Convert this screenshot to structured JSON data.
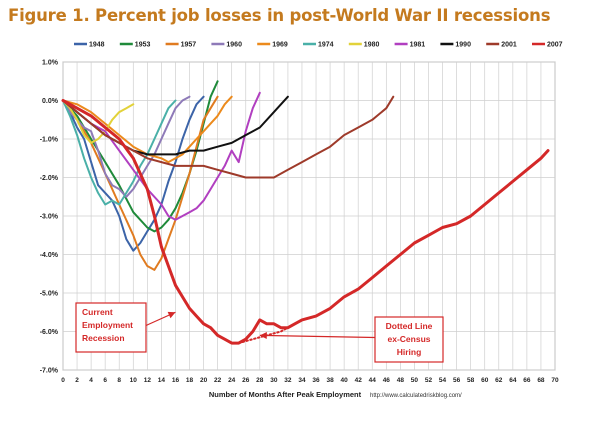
{
  "chart_data": {
    "type": "line",
    "title": "Figure 1. Percent job losses in post-World War II recessions",
    "xlabel": "Number of Months After Peak Employment",
    "source": "http://www.calculatedriskblog.com/",
    "xlim": [
      0,
      70
    ],
    "ylim": [
      -7.0,
      1.0
    ],
    "xticks": [
      0,
      2,
      4,
      6,
      8,
      10,
      12,
      14,
      16,
      18,
      20,
      22,
      24,
      26,
      28,
      30,
      32,
      34,
      36,
      38,
      40,
      42,
      44,
      46,
      48,
      50,
      52,
      54,
      56,
      58,
      60,
      62,
      64,
      66,
      68,
      70
    ],
    "yticks": [
      {
        "v": 1,
        "label": "1.0%"
      },
      {
        "v": 0,
        "label": "0.0%"
      },
      {
        "v": -1,
        "label": "-1.0%"
      },
      {
        "v": -2,
        "label": "-2.0%"
      },
      {
        "v": -3,
        "label": "-3.0%"
      },
      {
        "v": -4,
        "label": "-4.0%"
      },
      {
        "v": -5,
        "label": "-5.0%"
      },
      {
        "v": -6,
        "label": "-6.0%"
      },
      {
        "v": -7,
        "label": "-7.0%"
      }
    ],
    "grid": true,
    "legend": "top",
    "series": [
      {
        "name": "1948",
        "color": "#3c64a8",
        "width": 2,
        "points": [
          [
            0,
            0
          ],
          [
            1,
            -0.3
          ],
          [
            2,
            -0.7
          ],
          [
            3,
            -1.0
          ],
          [
            4,
            -1.6
          ],
          [
            5,
            -2.2
          ],
          [
            6,
            -2.4
          ],
          [
            7,
            -2.6
          ],
          [
            8,
            -3.0
          ],
          [
            9,
            -3.6
          ],
          [
            10,
            -3.9
          ],
          [
            11,
            -3.7
          ],
          [
            12,
            -3.4
          ],
          [
            13,
            -3.1
          ],
          [
            14,
            -2.7
          ],
          [
            15,
            -2.1
          ],
          [
            16,
            -1.6
          ],
          [
            17,
            -1.0
          ],
          [
            18,
            -0.5
          ],
          [
            19,
            -0.1
          ],
          [
            20,
            0.1
          ]
        ]
      },
      {
        "name": "1953",
        "color": "#1f8a3a",
        "width": 2,
        "points": [
          [
            0,
            0
          ],
          [
            2,
            -0.4
          ],
          [
            4,
            -1.0
          ],
          [
            6,
            -1.6
          ],
          [
            8,
            -2.2
          ],
          [
            10,
            -2.9
          ],
          [
            12,
            -3.3
          ],
          [
            13,
            -3.4
          ],
          [
            14,
            -3.3
          ],
          [
            15,
            -3.1
          ],
          [
            16,
            -2.8
          ],
          [
            17,
            -2.4
          ],
          [
            18,
            -1.9
          ],
          [
            19,
            -1.3
          ],
          [
            20,
            -0.6
          ],
          [
            21,
            0.1
          ],
          [
            22,
            0.5
          ]
        ]
      },
      {
        "name": "1957",
        "color": "#e07b20",
        "width": 2,
        "points": [
          [
            0,
            0
          ],
          [
            2,
            -0.5
          ],
          [
            4,
            -1.1
          ],
          [
            6,
            -1.9
          ],
          [
            8,
            -2.7
          ],
          [
            10,
            -3.5
          ],
          [
            11,
            -4.0
          ],
          [
            12,
            -4.3
          ],
          [
            13,
            -4.4
          ],
          [
            14,
            -4.1
          ],
          [
            15,
            -3.6
          ],
          [
            16,
            -3.1
          ],
          [
            17,
            -2.5
          ],
          [
            18,
            -1.9
          ],
          [
            19,
            -1.2
          ],
          [
            20,
            -0.5
          ],
          [
            21,
            -0.2
          ],
          [
            22,
            0.1
          ]
        ]
      },
      {
        "name": "1960",
        "color": "#8e7ab8",
        "width": 2,
        "points": [
          [
            0,
            0
          ],
          [
            1,
            -0.3
          ],
          [
            2,
            -0.5
          ],
          [
            3,
            -0.7
          ],
          [
            4,
            -0.8
          ],
          [
            5,
            -1.3
          ],
          [
            6,
            -1.9
          ],
          [
            7,
            -2.2
          ],
          [
            8,
            -2.3
          ],
          [
            9,
            -2.5
          ],
          [
            10,
            -2.3
          ],
          [
            11,
            -2.0
          ],
          [
            12,
            -1.7
          ],
          [
            13,
            -1.4
          ],
          [
            14,
            -1.0
          ],
          [
            15,
            -0.6
          ],
          [
            16,
            -0.2
          ],
          [
            17,
            0.0
          ],
          [
            18,
            0.1
          ]
        ]
      },
      {
        "name": "1969",
        "color": "#ec8a1c",
        "width": 2,
        "points": [
          [
            0,
            0
          ],
          [
            2,
            -0.1
          ],
          [
            4,
            -0.3
          ],
          [
            6,
            -0.6
          ],
          [
            8,
            -0.9
          ],
          [
            10,
            -1.2
          ],
          [
            12,
            -1.4
          ],
          [
            14,
            -1.5
          ],
          [
            15,
            -1.6
          ],
          [
            16,
            -1.5
          ],
          [
            17,
            -1.4
          ],
          [
            18,
            -1.2
          ],
          [
            19,
            -1.0
          ],
          [
            20,
            -0.8
          ],
          [
            21,
            -0.6
          ],
          [
            22,
            -0.4
          ],
          [
            23,
            -0.1
          ],
          [
            24,
            0.1
          ]
        ]
      },
      {
        "name": "1974",
        "color": "#4ab0a8",
        "width": 2,
        "points": [
          [
            0,
            0
          ],
          [
            1,
            -0.4
          ],
          [
            2,
            -0.9
          ],
          [
            3,
            -1.5
          ],
          [
            4,
            -2.0
          ],
          [
            5,
            -2.4
          ],
          [
            6,
            -2.7
          ],
          [
            7,
            -2.6
          ],
          [
            8,
            -2.7
          ],
          [
            9,
            -2.4
          ],
          [
            10,
            -2.1
          ],
          [
            11,
            -1.7
          ],
          [
            12,
            -1.4
          ],
          [
            13,
            -1.0
          ],
          [
            14,
            -0.6
          ],
          [
            15,
            -0.2
          ],
          [
            16,
            0.0
          ]
        ]
      },
      {
        "name": "1980",
        "color": "#e2d23a",
        "width": 2,
        "points": [
          [
            0,
            0
          ],
          [
            1,
            -0.2
          ],
          [
            2,
            -0.5
          ],
          [
            3,
            -0.9
          ],
          [
            4,
            -1.1
          ],
          [
            5,
            -1.0
          ],
          [
            6,
            -0.8
          ],
          [
            7,
            -0.5
          ],
          [
            8,
            -0.3
          ],
          [
            9,
            -0.2
          ],
          [
            10,
            -0.1
          ]
        ]
      },
      {
        "name": "1981",
        "color": "#b13fc0",
        "width": 2,
        "points": [
          [
            0,
            0
          ],
          [
            2,
            -0.3
          ],
          [
            4,
            -0.6
          ],
          [
            6,
            -0.8
          ],
          [
            8,
            -1.3
          ],
          [
            10,
            -1.8
          ],
          [
            12,
            -2.3
          ],
          [
            14,
            -2.7
          ],
          [
            15,
            -3.0
          ],
          [
            16,
            -3.1
          ],
          [
            17,
            -3.0
          ],
          [
            18,
            -2.9
          ],
          [
            19,
            -2.8
          ],
          [
            20,
            -2.6
          ],
          [
            21,
            -2.3
          ],
          [
            22,
            -2.0
          ],
          [
            23,
            -1.7
          ],
          [
            24,
            -1.3
          ],
          [
            25,
            -1.6
          ],
          [
            26,
            -0.8
          ],
          [
            27,
            -0.2
          ],
          [
            28,
            0.2
          ]
        ]
      },
      {
        "name": "1990",
        "color": "#111111",
        "width": 2,
        "points": [
          [
            0,
            0
          ],
          [
            2,
            -0.3
          ],
          [
            4,
            -0.6
          ],
          [
            6,
            -0.9
          ],
          [
            8,
            -1.1
          ],
          [
            10,
            -1.3
          ],
          [
            12,
            -1.4
          ],
          [
            14,
            -1.4
          ],
          [
            16,
            -1.4
          ],
          [
            18,
            -1.3
          ],
          [
            20,
            -1.3
          ],
          [
            22,
            -1.2
          ],
          [
            24,
            -1.1
          ],
          [
            26,
            -0.9
          ],
          [
            28,
            -0.7
          ],
          [
            30,
            -0.3
          ],
          [
            32,
            0.1
          ]
        ]
      },
      {
        "name": "2001",
        "color": "#9e3a2a",
        "width": 2,
        "points": [
          [
            0,
            0
          ],
          [
            2,
            -0.3
          ],
          [
            4,
            -0.6
          ],
          [
            6,
            -0.9
          ],
          [
            8,
            -1.1
          ],
          [
            10,
            -1.3
          ],
          [
            12,
            -1.5
          ],
          [
            14,
            -1.6
          ],
          [
            16,
            -1.7
          ],
          [
            18,
            -1.7
          ],
          [
            20,
            -1.7
          ],
          [
            22,
            -1.8
          ],
          [
            24,
            -1.9
          ],
          [
            26,
            -2.0
          ],
          [
            28,
            -2.0
          ],
          [
            30,
            -2.0
          ],
          [
            32,
            -1.8
          ],
          [
            34,
            -1.6
          ],
          [
            36,
            -1.4
          ],
          [
            38,
            -1.2
          ],
          [
            40,
            -0.9
          ],
          [
            42,
            -0.7
          ],
          [
            44,
            -0.5
          ],
          [
            46,
            -0.2
          ],
          [
            47,
            0.1
          ]
        ]
      },
      {
        "name": "2007",
        "color": "#d42828",
        "width": 3,
        "points": [
          [
            0,
            0
          ],
          [
            2,
            -0.2
          ],
          [
            4,
            -0.4
          ],
          [
            6,
            -0.7
          ],
          [
            8,
            -1.0
          ],
          [
            10,
            -1.5
          ],
          [
            12,
            -2.3
          ],
          [
            13,
            -3.0
          ],
          [
            14,
            -3.8
          ],
          [
            15,
            -4.3
          ],
          [
            16,
            -4.8
          ],
          [
            17,
            -5.1
          ],
          [
            18,
            -5.4
          ],
          [
            19,
            -5.6
          ],
          [
            20,
            -5.8
          ],
          [
            21,
            -5.9
          ],
          [
            22,
            -6.1
          ],
          [
            23,
            -6.2
          ],
          [
            24,
            -6.3
          ],
          [
            25,
            -6.3
          ],
          [
            26,
            -6.2
          ],
          [
            27,
            -6.0
          ],
          [
            28,
            -5.7
          ],
          [
            29,
            -5.8
          ],
          [
            30,
            -5.8
          ],
          [
            31,
            -5.9
          ],
          [
            32,
            -5.9
          ],
          [
            33,
            -5.8
          ],
          [
            34,
            -5.7
          ],
          [
            36,
            -5.6
          ],
          [
            38,
            -5.4
          ],
          [
            40,
            -5.1
          ],
          [
            42,
            -4.9
          ],
          [
            44,
            -4.6
          ],
          [
            46,
            -4.3
          ],
          [
            48,
            -4.0
          ],
          [
            50,
            -3.7
          ],
          [
            52,
            -3.5
          ],
          [
            54,
            -3.3
          ],
          [
            56,
            -3.2
          ],
          [
            58,
            -3.0
          ],
          [
            60,
            -2.7
          ],
          [
            62,
            -2.4
          ],
          [
            64,
            -2.1
          ],
          [
            66,
            -1.8
          ],
          [
            68,
            -1.5
          ],
          [
            69,
            -1.3
          ]
        ]
      },
      {
        "name": "2007 ex-Census Hiring",
        "legend": false,
        "dotted": true,
        "color": "#d42828",
        "width": 2,
        "points": [
          [
            25,
            -6.3
          ],
          [
            27,
            -6.2
          ],
          [
            29,
            -6.1
          ],
          [
            31,
            -6.0
          ],
          [
            33,
            -5.8
          ]
        ]
      }
    ],
    "annotations": [
      {
        "id": "current",
        "lines": [
          "Current",
          "Employment",
          "Recession"
        ],
        "arrow_to": [
          16,
          -5.5
        ]
      },
      {
        "id": "dotted",
        "lines": [
          "Dotted Line",
          "ex-Census",
          "Hiring"
        ],
        "arrow_to": [
          28,
          -6.1
        ]
      }
    ]
  }
}
